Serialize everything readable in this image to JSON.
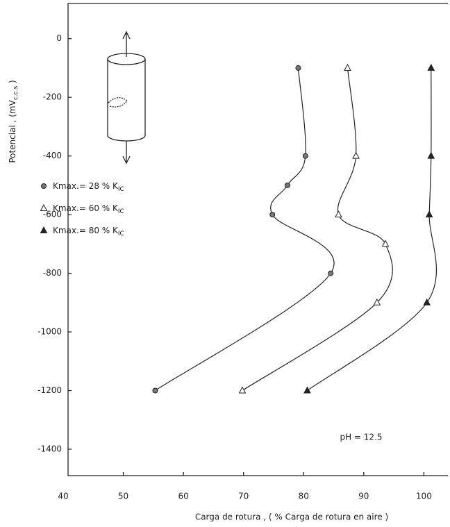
{
  "chart_data": {
    "type": "line",
    "xlabel": "Carga de rotura , ( % Carga de rotura en aire )",
    "ylabel": "Potencial , (mV",
    "ylabel_subscript": "c.c.s",
    "ylabel_end": " )",
    "annotation": "pH = 12.5",
    "xlim": [
      40,
      104
    ],
    "xticks": [
      40,
      50,
      60,
      70,
      80,
      90,
      100
    ],
    "ylim": [
      -1490,
      120
    ],
    "yticks": [
      0,
      -200,
      -400,
      -600,
      -800,
      -1000,
      -1200,
      -1400
    ],
    "series": [
      {
        "name": "Kmax.= 28 % K",
        "name_subscript": "IC",
        "marker": "circle",
        "color": "#222222",
        "x": [
          79.1,
          80.3,
          77.3,
          74.8,
          84.5,
          55.3
        ],
        "values": [
          -100,
          -400,
          -500,
          -600,
          -800,
          -1200
        ]
      },
      {
        "name": "Kmax.= 60 % K",
        "name_subscript": "IC",
        "marker": "triangle-open",
        "color": "#222222",
        "x": [
          87.3,
          88.7,
          85.8,
          93.6,
          92.2,
          69.8
        ],
        "values": [
          -100,
          -400,
          -600,
          -700,
          -900,
          -1200
        ]
      },
      {
        "name": "Kmax.= 80 % K",
        "name_subscript": "IC",
        "marker": "triangle",
        "color": "#222222",
        "x": [
          101.2,
          101.2,
          100.9,
          100.5,
          80.6
        ],
        "values": [
          -100,
          -400,
          -600,
          -900,
          -1200
        ]
      }
    ]
  }
}
